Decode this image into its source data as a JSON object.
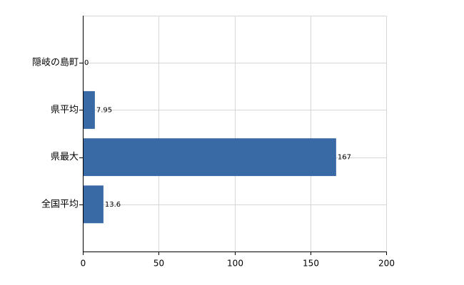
{
  "chart_data": {
    "type": "barh",
    "categories": [
      "隠岐の島町",
      "県平均",
      "県最大",
      "全国平均"
    ],
    "values": [
      0,
      7.95,
      167,
      13.6
    ],
    "color": "#3a6aa6",
    "xlim": [
      0,
      200
    ],
    "xticks": [
      0,
      50,
      100,
      150,
      200
    ],
    "grid": true
  }
}
